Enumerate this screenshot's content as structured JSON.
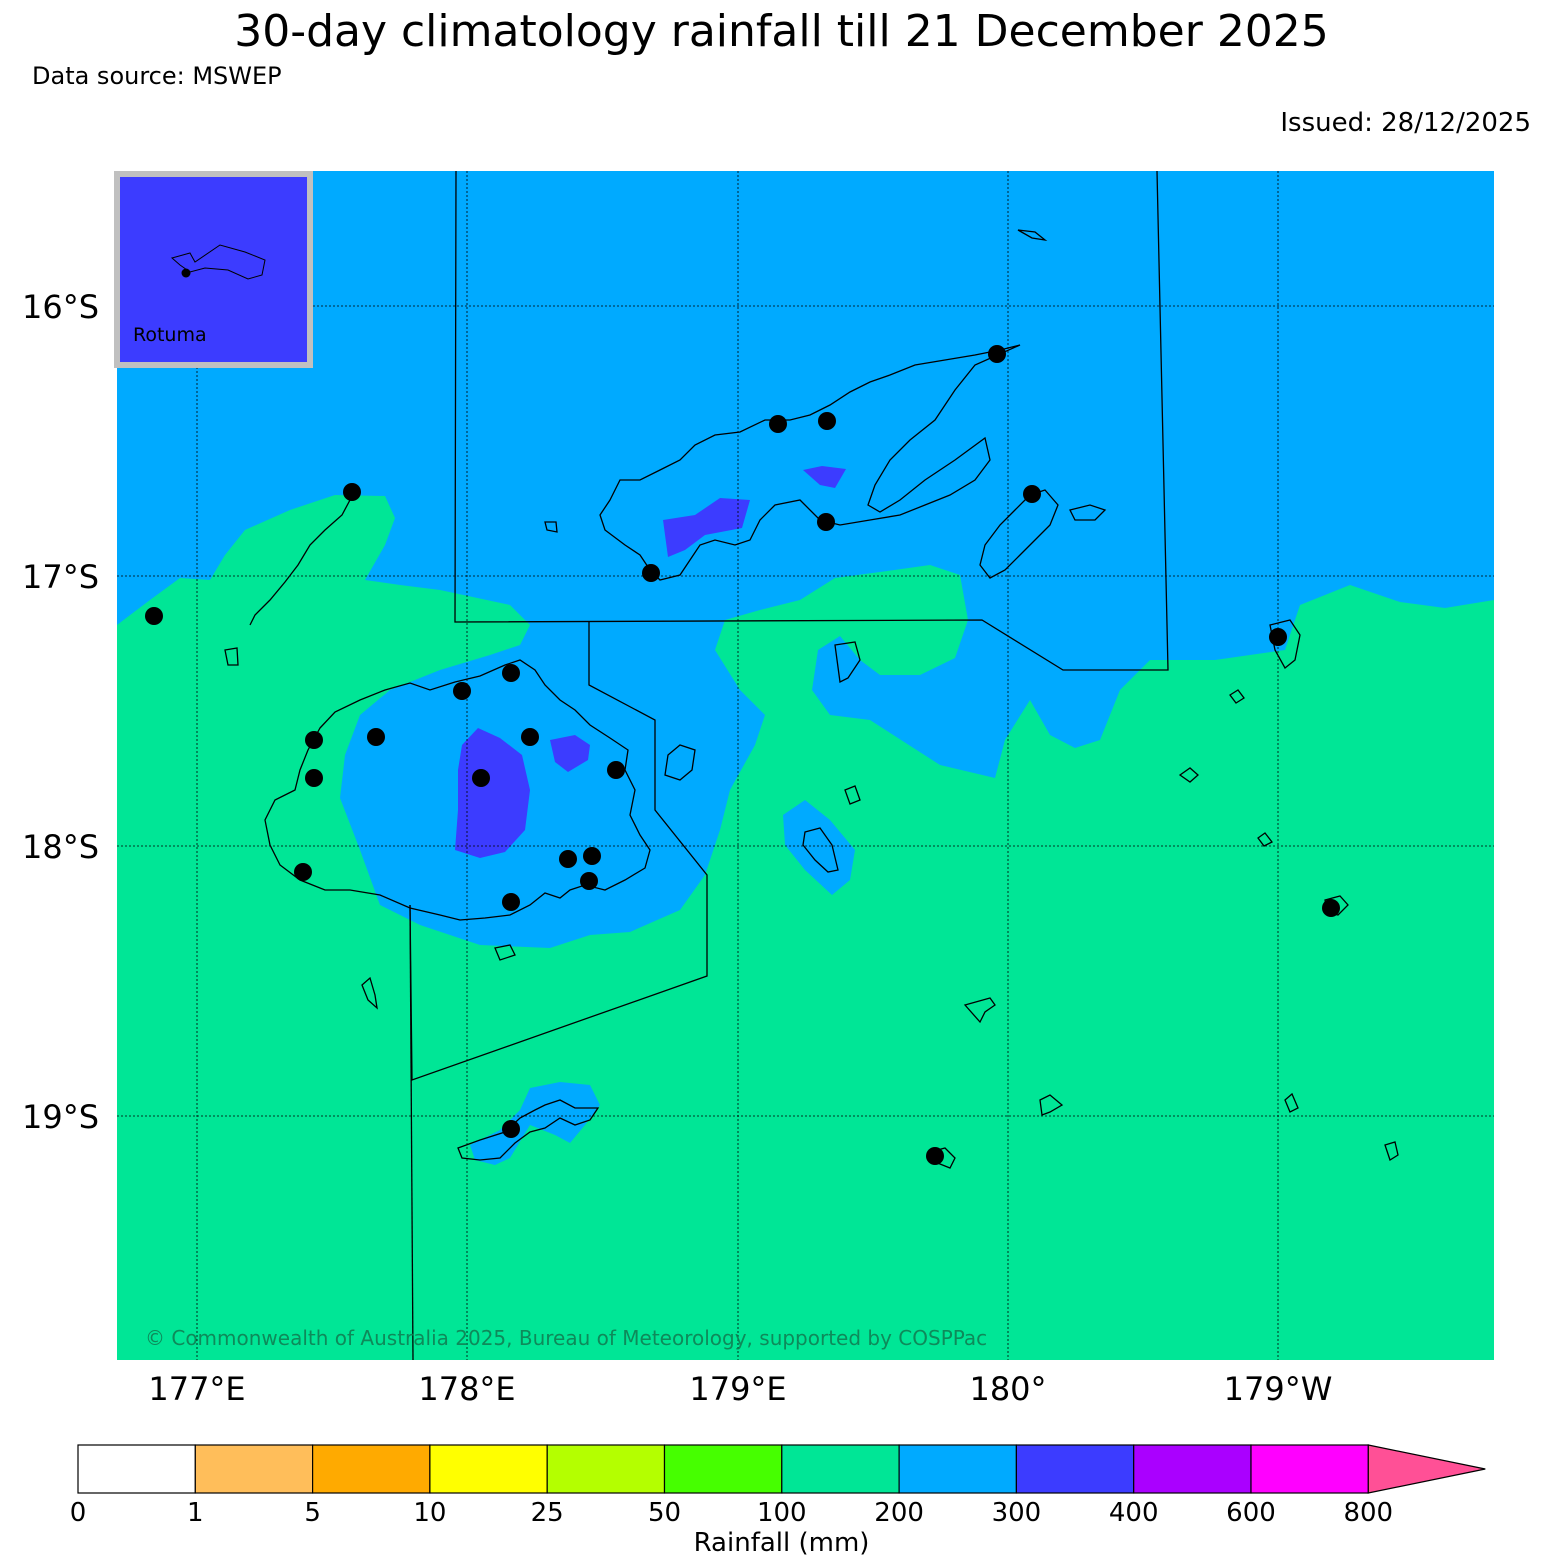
{
  "header": {
    "title": "30-day climatology rainfall till 21 December 2025",
    "source": "Data source: MSWEP",
    "issued": "Issued: 28/12/2025"
  },
  "map": {
    "lat_labels": [
      "16°S",
      "17°S",
      "18°S",
      "19°S"
    ],
    "lon_labels": [
      "177°E",
      "178°E",
      "179°E",
      "180°",
      "179°W"
    ],
    "inset_label": "Rotuma",
    "copyright": "© Commonwealth of Australia 2025, Bureau of Meteorology, supported by COSPPac",
    "colors": {
      "class_100_200": "#00e696",
      "class_200_300": "#00aaff",
      "class_300_400": "#3c3cff",
      "outline": "#000000",
      "inset_border": "#c0c0c0"
    }
  },
  "colorbar": {
    "title": "Rainfall (mm)",
    "ticks": [
      "0",
      "1",
      "5",
      "10",
      "25",
      "50",
      "100",
      "200",
      "300",
      "400",
      "600",
      "800"
    ],
    "colors": [
      "#ffffff",
      "#ffbe5a",
      "#ffaa00",
      "#ffff00",
      "#b4ff00",
      "#46ff00",
      "#00e696",
      "#00aaff",
      "#3c3cff",
      "#aa00ff",
      "#ff00ff",
      "#ff5096"
    ]
  }
}
